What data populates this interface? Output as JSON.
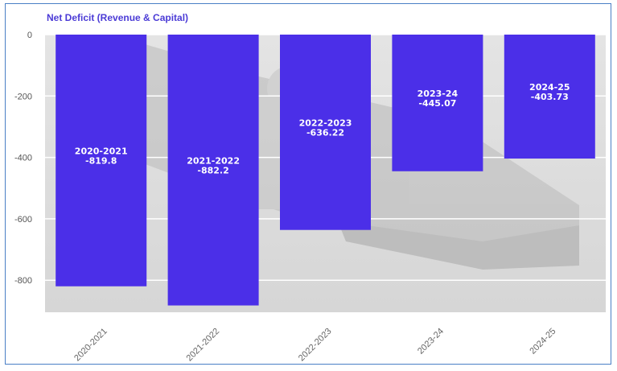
{
  "chart_data": {
    "type": "bar",
    "title": "Net Deficit (Revenue & Capital)",
    "categories": [
      "2020-2021",
      "2021-2022",
      "2022-2023",
      "2023-24",
      "2024-25"
    ],
    "values": [
      -819.8,
      -882.2,
      -636.22,
      -445.07,
      -403.73
    ],
    "data_labels": [
      [
        "2020-2021",
        "-819.8"
      ],
      [
        "2021-2022",
        "-882.2"
      ],
      [
        "2022-2023",
        "-636.22"
      ],
      [
        "2023-24",
        "-445.07"
      ],
      [
        "2024-25",
        "-403.73"
      ]
    ],
    "yticks": [
      "0",
      "-200",
      "-400",
      "-600",
      "-800"
    ],
    "ylim": [
      -900,
      0
    ],
    "grid": true,
    "legend": "none",
    "colors": {
      "bar": "#4b2fe8",
      "plot_bg": "#dcdcdc",
      "title": "#4b3bd6"
    }
  }
}
